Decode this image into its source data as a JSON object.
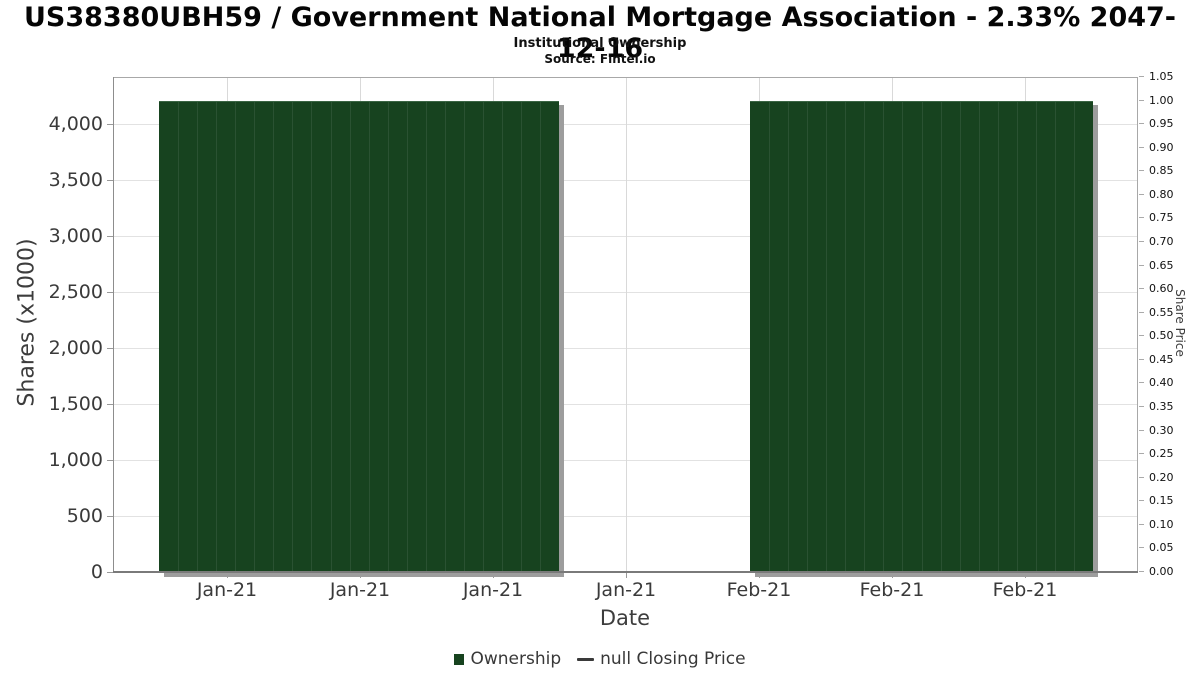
{
  "header": {
    "title": "US38380UBH59 / Government National Mortgage Association - 2.33% 2047-12-16",
    "subtitle": "Institutional Ownership",
    "source": "Source: Fintel.io"
  },
  "chart_data": {
    "type": "bar",
    "title": "US38380UBH59 / Government National Mortgage Association - 2.33% 2047-12-16",
    "subtitle": "Institutional Ownership",
    "source": "Source: Fintel.io",
    "xlabel": "Date",
    "x_tick_labels": [
      "Jan-21",
      "Jan-21",
      "Jan-21",
      "Jan-21",
      "Feb-21",
      "Feb-21",
      "Feb-21"
    ],
    "left_axis": {
      "label": "Shares (x1000)",
      "min": 0,
      "max": 4000,
      "ticks": [
        {
          "value": 0,
          "label": "0"
        },
        {
          "value": 500,
          "label": "500"
        },
        {
          "value": 1000,
          "label": "1,000"
        },
        {
          "value": 1500,
          "label": "1,500"
        },
        {
          "value": 2000,
          "label": "2,000"
        },
        {
          "value": 2500,
          "label": "2,500"
        },
        {
          "value": 3000,
          "label": "3,000"
        },
        {
          "value": 3500,
          "label": "3,500"
        },
        {
          "value": 4000,
          "label": "4,000"
        }
      ]
    },
    "right_axis": {
      "label": "Share Price",
      "min": 0.0,
      "max": 1.05,
      "ticks": [
        "0.00",
        "0.05",
        "0.10",
        "0.15",
        "0.20",
        "0.25",
        "0.30",
        "0.35",
        "0.40",
        "0.45",
        "0.50",
        "0.55",
        "0.60",
        "0.65",
        "0.70",
        "0.75",
        "0.80",
        "0.85",
        "0.90",
        "0.95",
        "1.00",
        "1.05"
      ],
      "tick_step": 0.05
    },
    "grid": true,
    "legend_position": "bottom-center",
    "series": [
      {
        "name": "Ownership",
        "type": "bar",
        "color": "#17431f",
        "values": [
          4200,
          4200,
          4200,
          4200,
          4200,
          4200,
          4200,
          4200,
          4200,
          4200,
          4200,
          4200,
          4200,
          4200,
          4200,
          4200,
          4200,
          4200,
          4200,
          4200,
          4200,
          null,
          null,
          null,
          null,
          null,
          null,
          null,
          null,
          null,
          null,
          4200,
          4200,
          4200,
          4200,
          4200,
          4200,
          4200,
          4200,
          4200,
          4200,
          4200,
          4200,
          4200,
          4200,
          4200,
          4200,
          4200,
          4200
        ]
      },
      {
        "name": "null Closing Price",
        "type": "line",
        "color": "#3a3a3a",
        "values": []
      }
    ],
    "legend": [
      {
        "label": "Ownership",
        "marker": "square",
        "color": "#17431f"
      },
      {
        "label": "null Closing Price",
        "marker": "line",
        "color": "#3a3a3a"
      }
    ]
  },
  "colors": {
    "bar_fill": "#17431f",
    "bar_separator": "#2a5232",
    "bar_shadow": "#9d9d9d",
    "grid_line": "#e2e2e2",
    "tick_text": "#3a3a3a"
  }
}
